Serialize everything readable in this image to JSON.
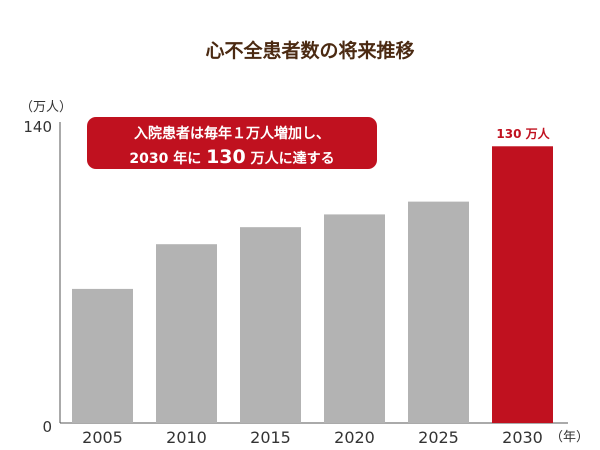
{
  "chart_data": {
    "type": "bar",
    "title": "心不全患者数の将来推移",
    "ylabel": "（万人）",
    "xlabel_unit": "（年）",
    "categories": [
      "2005",
      "2010",
      "2015",
      "2020",
      "2025",
      "2030"
    ],
    "values": [
      63,
      84,
      92,
      98,
      104,
      130
    ],
    "ylim": [
      0,
      140
    ],
    "yticks": [
      "0",
      "140"
    ],
    "highlight_index": 5,
    "highlight_label": "130 万人",
    "annotation": {
      "line1": "入院患者は毎年１万人増加し、",
      "line2_prefix": "2030 年に ",
      "line2_big": "130",
      "line2_suffix": " 万人に達する"
    },
    "colors": {
      "bar": "#b3b3b3",
      "highlight": "#c0111f",
      "title": "#4b2a12",
      "axis": "#555555",
      "text": "#333333",
      "callout_bg": "#c0111f",
      "callout_text": "#ffffff"
    }
  }
}
